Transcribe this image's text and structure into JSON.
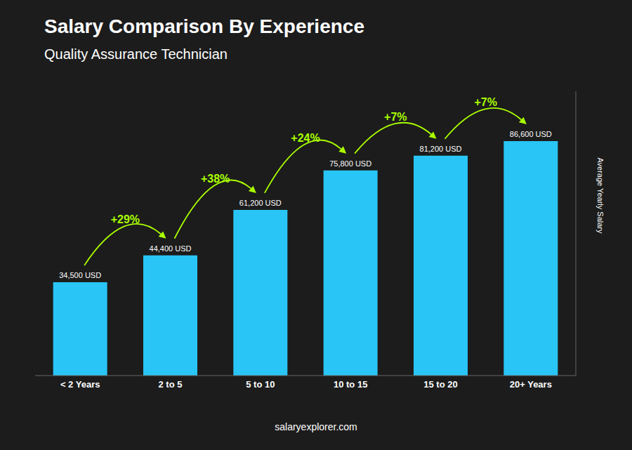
{
  "chart_data": {
    "type": "bar",
    "title": "Salary Comparison By Experience",
    "subtitle": "Quality Assurance Technician",
    "categories": [
      "< 2 Years",
      "2 to 5",
      "5 to 10",
      "10 to 15",
      "15 to 20",
      "20+ Years"
    ],
    "values": [
      34500,
      44400,
      61200,
      75800,
      81200,
      86600
    ],
    "value_labels": [
      "34,500 USD",
      "44,400 USD",
      "61,200 USD",
      "75,800 USD",
      "81,200 USD",
      "86,600 USD"
    ],
    "data_labels": true,
    "color": "#29c5f6",
    "ylabel": "Average Yearly Salary",
    "ylim": [
      0,
      105000
    ],
    "tick_labels": "x",
    "grid": false,
    "annotations": [
      {
        "text": "+29%",
        "color": "#aaff00"
      },
      {
        "text": "+38%",
        "color": "#aaff00"
      },
      {
        "text": "+24%",
        "color": "#aaff00"
      },
      {
        "text": "+7%",
        "color": "#aaff00"
      },
      {
        "text": "+7%",
        "color": "#aaff00"
      }
    ],
    "footer": "salaryexplorer.com"
  }
}
